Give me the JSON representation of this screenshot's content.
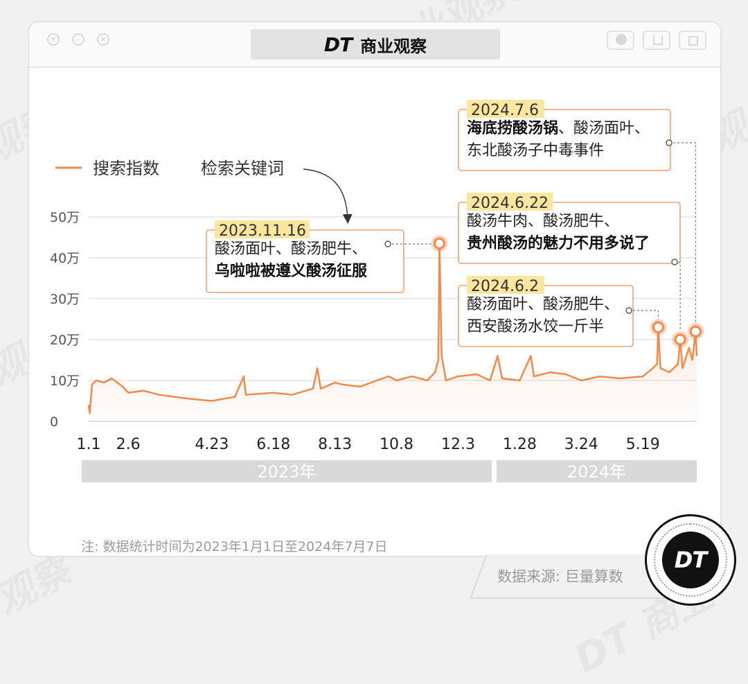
{
  "window": {
    "logo": "DT",
    "title": "商业观察"
  },
  "watermark": {
    "text": "DT 商业观察"
  },
  "legend": {
    "series_label": "搜索指数",
    "keyword_label": "检索关键词"
  },
  "chart_data": {
    "type": "line",
    "series": [
      {
        "name": "搜索指数",
        "color": "#f08a4b"
      }
    ],
    "y_ticks": [
      {
        "value": 0,
        "label": "0"
      },
      {
        "value": 100000,
        "label": "10万"
      },
      {
        "value": 200000,
        "label": "20万"
      },
      {
        "value": 300000,
        "label": "30万"
      },
      {
        "value": 400000,
        "label": "40万"
      },
      {
        "value": 500000,
        "label": "50万"
      }
    ],
    "ylim": [
      0,
      500000
    ],
    "xlim": [
      "2023-01-01",
      "2024-07-07"
    ],
    "x_ticks": [
      {
        "date": "2023-01-01",
        "label": "1.1"
      },
      {
        "date": "2023-02-06",
        "label": "2.6"
      },
      {
        "date": "2023-04-23",
        "label": "4.23"
      },
      {
        "date": "2023-06-18",
        "label": "6.18"
      },
      {
        "date": "2023-08-13",
        "label": "8.13"
      },
      {
        "date": "2023-10-08",
        "label": "10.8"
      },
      {
        "date": "2023-12-03",
        "label": "12.3"
      },
      {
        "date": "2024-01-28",
        "label": "1.28"
      },
      {
        "date": "2024-03-24",
        "label": "3.24"
      },
      {
        "date": "2024-05-19",
        "label": "5.19"
      }
    ],
    "years": [
      {
        "label": "2023年",
        "from": "2023-01-01",
        "to": "2024-01-05"
      },
      {
        "label": "2024年",
        "from": "2024-01-05",
        "to": "2024-07-07"
      }
    ],
    "points": [
      {
        "date": "2023-01-01",
        "value": 40000
      },
      {
        "date": "2023-01-02",
        "value": 20000
      },
      {
        "date": "2023-01-04",
        "value": 90000
      },
      {
        "date": "2023-01-08",
        "value": 100000
      },
      {
        "date": "2023-01-15",
        "value": 95000
      },
      {
        "date": "2023-01-22",
        "value": 105000
      },
      {
        "date": "2023-02-01",
        "value": 85000
      },
      {
        "date": "2023-02-06",
        "value": 70000
      },
      {
        "date": "2023-02-20",
        "value": 75000
      },
      {
        "date": "2023-03-06",
        "value": 65000
      },
      {
        "date": "2023-03-20",
        "value": 60000
      },
      {
        "date": "2023-04-03",
        "value": 55000
      },
      {
        "date": "2023-04-23",
        "value": 50000
      },
      {
        "date": "2023-05-14",
        "value": 60000
      },
      {
        "date": "2023-05-22",
        "value": 110000
      },
      {
        "date": "2023-05-24",
        "value": 65000
      },
      {
        "date": "2023-06-18",
        "value": 70000
      },
      {
        "date": "2023-07-05",
        "value": 65000
      },
      {
        "date": "2023-07-24",
        "value": 80000
      },
      {
        "date": "2023-07-28",
        "value": 130000
      },
      {
        "date": "2023-07-31",
        "value": 80000
      },
      {
        "date": "2023-08-13",
        "value": 95000
      },
      {
        "date": "2023-08-20",
        "value": 90000
      },
      {
        "date": "2023-09-05",
        "value": 85000
      },
      {
        "date": "2023-09-20",
        "value": 100000
      },
      {
        "date": "2023-10-01",
        "value": 110000
      },
      {
        "date": "2023-10-08",
        "value": 100000
      },
      {
        "date": "2023-10-22",
        "value": 110000
      },
      {
        "date": "2023-11-05",
        "value": 100000
      },
      {
        "date": "2023-11-12",
        "value": 120000
      },
      {
        "date": "2023-11-15",
        "value": 150000
      },
      {
        "date": "2023-11-16",
        "value": 435000
      },
      {
        "date": "2023-11-18",
        "value": 160000
      },
      {
        "date": "2023-11-22",
        "value": 100000
      },
      {
        "date": "2023-12-03",
        "value": 110000
      },
      {
        "date": "2023-12-20",
        "value": 115000
      },
      {
        "date": "2024-01-01",
        "value": 100000
      },
      {
        "date": "2024-01-08",
        "value": 160000
      },
      {
        "date": "2024-01-12",
        "value": 105000
      },
      {
        "date": "2024-01-28",
        "value": 100000
      },
      {
        "date": "2024-02-07",
        "value": 160000
      },
      {
        "date": "2024-02-10",
        "value": 110000
      },
      {
        "date": "2024-02-25",
        "value": 120000
      },
      {
        "date": "2024-03-10",
        "value": 115000
      },
      {
        "date": "2024-03-24",
        "value": 100000
      },
      {
        "date": "2024-04-10",
        "value": 110000
      },
      {
        "date": "2024-04-28",
        "value": 105000
      },
      {
        "date": "2024-05-19",
        "value": 110000
      },
      {
        "date": "2024-05-28",
        "value": 130000
      },
      {
        "date": "2024-06-01",
        "value": 140000
      },
      {
        "date": "2024-06-02",
        "value": 230000
      },
      {
        "date": "2024-06-04",
        "value": 130000
      },
      {
        "date": "2024-06-12",
        "value": 120000
      },
      {
        "date": "2024-06-20",
        "value": 140000
      },
      {
        "date": "2024-06-22",
        "value": 200000
      },
      {
        "date": "2024-06-24",
        "value": 130000
      },
      {
        "date": "2024-06-30",
        "value": 180000
      },
      {
        "date": "2024-07-03",
        "value": 150000
      },
      {
        "date": "2024-07-06",
        "value": 220000
      },
      {
        "date": "2024-07-07",
        "value": 160000
      }
    ],
    "annotations": [
      {
        "date": "2023-11-16",
        "value": 435000,
        "date_label": "2023.11.16",
        "lines": [
          [
            {
              "text": "酸汤面叶、酸汤肥牛、",
              "bold": false
            }
          ],
          [
            {
              "text": "乌啦啦被遵义酸汤征服",
              "bold": true
            }
          ]
        ]
      },
      {
        "date": "2024-06-02",
        "value": 230000,
        "date_label": "2024.6.2",
        "lines": [
          [
            {
              "text": "酸汤面叶、酸汤肥牛、",
              "bold": false
            }
          ],
          [
            {
              "text": "西安酸汤水饺一斤半",
              "bold": false
            }
          ]
        ]
      },
      {
        "date": "2024-06-22",
        "value": 200000,
        "date_label": "2024.6.22",
        "lines": [
          [
            {
              "text": "酸汤牛肉、酸汤肥牛、",
              "bold": false
            }
          ],
          [
            {
              "text": "贵州酸汤的魅力不用多说了",
              "bold": true
            }
          ]
        ]
      },
      {
        "date": "2024-07-06",
        "value": 220000,
        "date_label": "2024.7.6",
        "lines": [
          [
            {
              "text": "海底捞酸汤锅",
              "bold": true
            },
            {
              "text": "、酸汤面叶、",
              "bold": false
            }
          ],
          [
            {
              "text": "东北酸汤子中毒事件",
              "bold": false
            }
          ]
        ]
      }
    ]
  },
  "footnote": "注: 数据统计时间为2023年1月1日至2024年7月7日",
  "source": "数据来源: 巨量算数",
  "badge": {
    "logo": "DT"
  }
}
